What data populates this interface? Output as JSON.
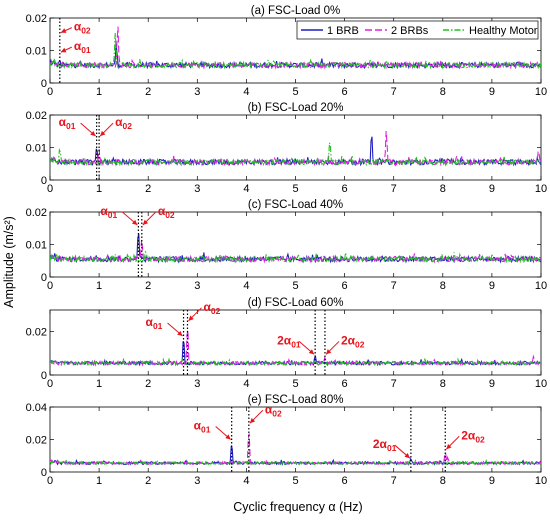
{
  "chart_data": {
    "type": "line",
    "xlabel": "Cyclic frequency α (Hz)",
    "ylabel": "Amplitude (m/s²)",
    "xlim": [
      0,
      10
    ],
    "xticks": [
      0,
      1,
      2,
      3,
      4,
      5,
      6,
      7,
      8,
      9,
      10
    ],
    "grid": false,
    "legend": {
      "placement": "top-right",
      "entries": [
        {
          "name": "1 BRB",
          "color": "#1f1fbf",
          "style": "solid"
        },
        {
          "name": "2 BRBs",
          "color": "#e020e0",
          "style": "dashed"
        },
        {
          "name": "Healthy Motor",
          "color": "#22c022",
          "style": "dashdot"
        }
      ]
    },
    "baseline": 0.0055,
    "panels": [
      {
        "title": "(a) FSC-Load 0%",
        "ylim": [
          0,
          0.02
        ],
        "yticks": [
          "0",
          "0.01",
          "0.02"
        ],
        "vlines": [
          0.2
        ],
        "annotations": [
          {
            "label": "α",
            "sub": "02",
            "x": 0.2,
            "y": 0.0155
          },
          {
            "label": "α",
            "sub": "01",
            "x": 0.2,
            "y": 0.0095
          }
        ],
        "peaks": [
          {
            "series": 0,
            "x": 1.35,
            "y": 0.013
          },
          {
            "series": 1,
            "x": 1.38,
            "y": 0.0195
          },
          {
            "series": 2,
            "x": 1.33,
            "y": 0.0165
          },
          {
            "series": 0,
            "x": 0.2,
            "y": 0.0072
          }
        ]
      },
      {
        "title": "(b) FSC-Load 20%",
        "ylim": [
          0,
          0.02
        ],
        "yticks": [
          "0",
          "0.01",
          "0.02"
        ],
        "vlines": [
          0.95,
          1.0
        ],
        "annotations": [
          {
            "label": "α",
            "sub": "01",
            "x": 0.95,
            "y": 0.0135
          },
          {
            "label": "α",
            "sub": "02",
            "x": 1.0,
            "y": 0.0135
          }
        ],
        "peaks": [
          {
            "series": 0,
            "x": 0.95,
            "y": 0.011
          },
          {
            "series": 1,
            "x": 1.0,
            "y": 0.0095
          },
          {
            "series": 2,
            "x": 0.2,
            "y": 0.0105
          },
          {
            "series": 2,
            "x": 5.7,
            "y": 0.0135
          },
          {
            "series": 0,
            "x": 6.55,
            "y": 0.016
          },
          {
            "series": 1,
            "x": 6.85,
            "y": 0.0165
          },
          {
            "series": 1,
            "x": 9.95,
            "y": 0.01
          }
        ]
      },
      {
        "title": "(c) FSC-Load 40%",
        "ylim": [
          0,
          0.02
        ],
        "yticks": [
          "0",
          "0.01",
          "0.02"
        ],
        "vlines": [
          1.8,
          1.87
        ],
        "annotations": [
          {
            "label": "α",
            "sub": "01",
            "x": 1.8,
            "y": 0.016
          },
          {
            "label": "α",
            "sub": "02",
            "x": 1.87,
            "y": 0.016
          }
        ],
        "peaks": [
          {
            "series": 0,
            "x": 1.8,
            "y": 0.016
          },
          {
            "series": 1,
            "x": 1.87,
            "y": 0.0125
          },
          {
            "series": 2,
            "x": 1.95,
            "y": 0.0085
          }
        ]
      },
      {
        "title": "(d) FSC-Load 60%",
        "ylim": [
          0,
          0.03
        ],
        "yticks": [
          "0",
          "0.02"
        ],
        "vlines": [
          2.72,
          2.8,
          5.4,
          5.6
        ],
        "annotations": [
          {
            "label": "α",
            "sub": "01",
            "x": 2.72,
            "y": 0.018
          },
          {
            "label": "α",
            "sub": "02",
            "x": 2.8,
            "y": 0.025
          },
          {
            "label": "2α",
            "sub": "01",
            "x": 5.4,
            "y": 0.0095
          },
          {
            "label": "2α",
            "sub": "02",
            "x": 5.6,
            "y": 0.0095
          }
        ],
        "peaks": [
          {
            "series": 0,
            "x": 2.72,
            "y": 0.0195
          },
          {
            "series": 1,
            "x": 2.8,
            "y": 0.026
          },
          {
            "series": 0,
            "x": 5.4,
            "y": 0.0095
          },
          {
            "series": 1,
            "x": 5.6,
            "y": 0.0085
          },
          {
            "series": 1,
            "x": 9.85,
            "y": 0.009
          }
        ]
      },
      {
        "title": "(e) FSC-Load 80%",
        "ylim": [
          0,
          0.04
        ],
        "yticks": [
          "0",
          "0.02",
          "0.04"
        ],
        "vlines": [
          3.7,
          4.05,
          7.35,
          8.05
        ],
        "annotations": [
          {
            "label": "α",
            "sub": "01",
            "x": 3.7,
            "y": 0.02
          },
          {
            "label": "α",
            "sub": "02",
            "x": 4.05,
            "y": 0.03
          },
          {
            "label": "2α",
            "sub": "01",
            "x": 7.35,
            "y": 0.0085
          },
          {
            "label": "2α",
            "sub": "02",
            "x": 8.05,
            "y": 0.014
          }
        ],
        "peaks": [
          {
            "series": 0,
            "x": 3.7,
            "y": 0.02
          },
          {
            "series": 1,
            "x": 4.05,
            "y": 0.03
          },
          {
            "series": 0,
            "x": 7.35,
            "y": 0.0085
          },
          {
            "series": 1,
            "x": 8.05,
            "y": 0.014
          },
          {
            "series": 1,
            "x": 8.1,
            "y": 0.0095
          }
        ]
      }
    ]
  }
}
